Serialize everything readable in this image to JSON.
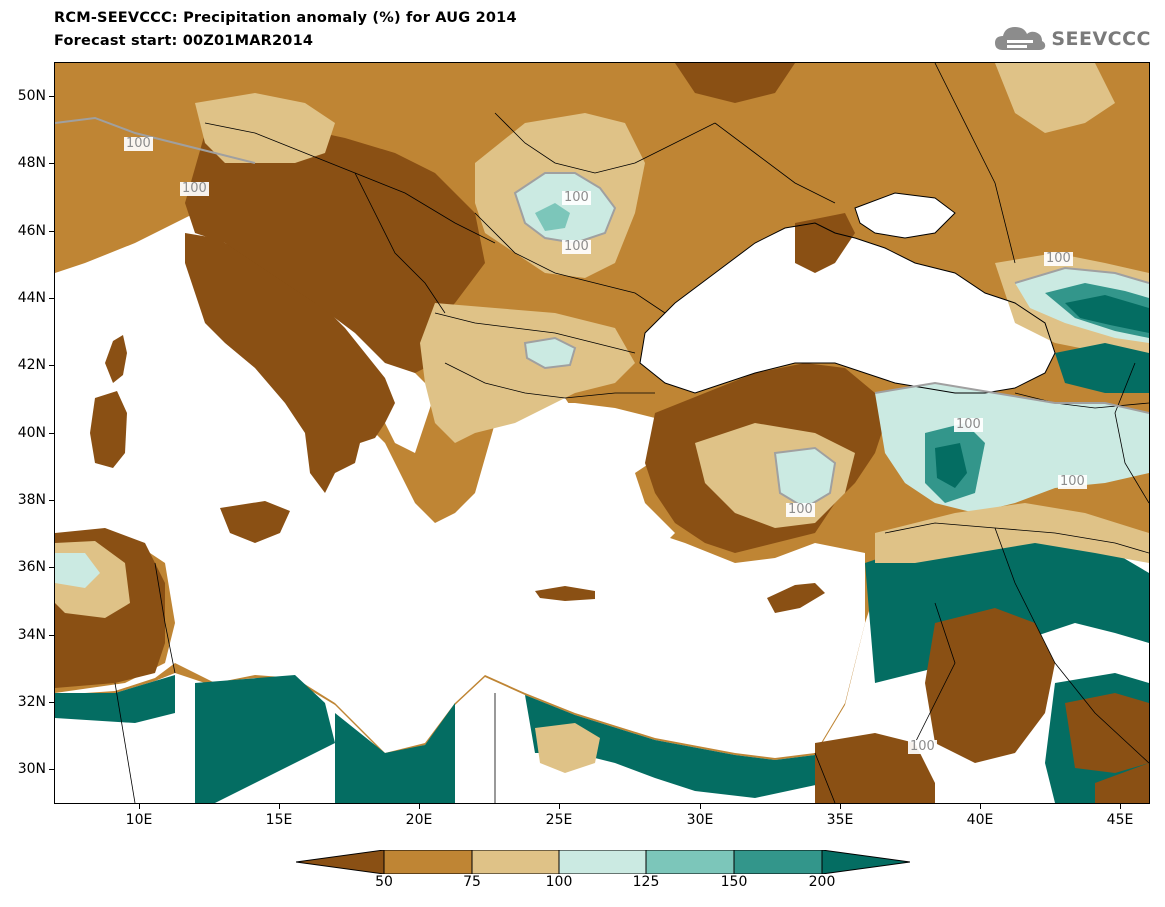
{
  "header": {
    "title": "RCM-SEEVCCC: Precipitation anomaly (%) for AUG 2014",
    "subtitle": "Forecast start: 00Z01MAR2014",
    "logo_text": "SEEVCCC",
    "logo_icon": "cloud-icon"
  },
  "map": {
    "lon_range": [
      7,
      46
    ],
    "lat_range": [
      29,
      51
    ],
    "lat_ticks": [
      "50N",
      "48N",
      "46N",
      "44N",
      "42N",
      "40N",
      "38N",
      "36N",
      "34N",
      "32N",
      "30N"
    ],
    "lon_ticks": [
      "10E",
      "15E",
      "20E",
      "25E",
      "30E",
      "35E",
      "40E",
      "45E"
    ],
    "contour_labels": [
      "100",
      "100",
      "100",
      "100",
      "100",
      "100",
      "100",
      "100",
      "100"
    ]
  },
  "legend": {
    "labels": [
      "50",
      "75",
      "100",
      "125",
      "150",
      "200"
    ],
    "colors": [
      "#8a5014",
      "#bf8534",
      "#dfc287",
      "#cbeae2",
      "#7cc6ba",
      "#33968b",
      "#046d62"
    ]
  }
}
